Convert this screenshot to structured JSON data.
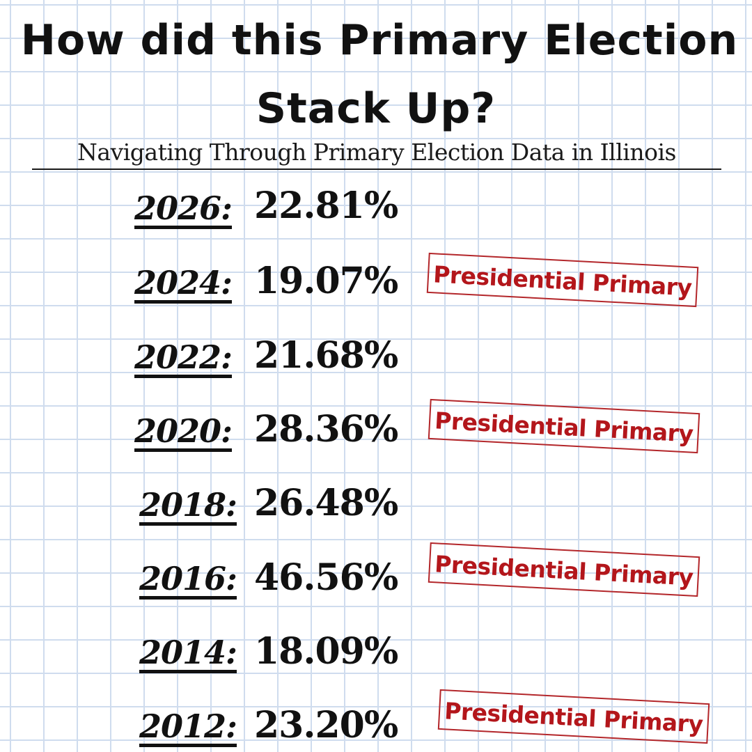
{
  "title": {
    "line1": "How did this Primary Election",
    "line2": "Stack Up?"
  },
  "subtitle": "Navigating Through Primary Election Data in Illinois",
  "stamp_color": "#b3161b",
  "grid_color": "#cfdcee",
  "rows": [
    {
      "year": "2026:",
      "turnout": "22.81%",
      "stamp": ""
    },
    {
      "year": "2024:",
      "turnout": "19.07%",
      "stamp": "Presidential Primary"
    },
    {
      "year": "2022:",
      "turnout": "21.68%",
      "stamp": ""
    },
    {
      "year": "2020:",
      "turnout": "28.36%",
      "stamp": "Presidential Primary"
    },
    {
      "year": "2018:",
      "turnout": "26.48%",
      "stamp": ""
    },
    {
      "year": "2016:",
      "turnout": "46.56%",
      "stamp": "Presidential Primary"
    },
    {
      "year": "2014:",
      "turnout": "18.09%",
      "stamp": ""
    },
    {
      "year": "2012:",
      "turnout": "23.20%",
      "stamp": "Presidential Primary"
    }
  ]
}
